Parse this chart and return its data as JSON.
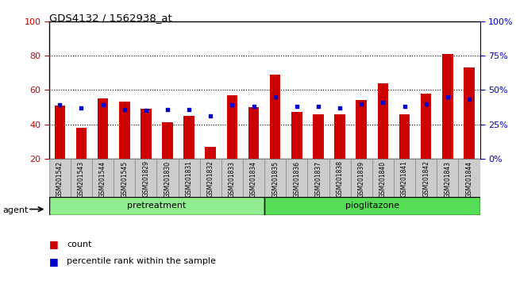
{
  "title": "GDS4132 / 1562938_at",
  "samples": [
    "GSM201542",
    "GSM201543",
    "GSM201544",
    "GSM201545",
    "GSM201829",
    "GSM201830",
    "GSM201831",
    "GSM201832",
    "GSM201833",
    "GSM201834",
    "GSM201835",
    "GSM201836",
    "GSM201837",
    "GSM201838",
    "GSM201839",
    "GSM201840",
    "GSM201841",
    "GSM201842",
    "GSM201843",
    "GSM201844"
  ],
  "counts": [
    51,
    38,
    55,
    53,
    49,
    41,
    45,
    27,
    57,
    50,
    69,
    47,
    46,
    46,
    54,
    64,
    46,
    58,
    81,
    73
  ],
  "percentile_ranks": [
    39,
    37,
    39,
    36,
    35,
    36,
    36,
    31,
    39,
    38,
    45,
    38,
    38,
    37,
    40,
    41,
    38,
    40,
    45,
    43
  ],
  "group_labels": [
    "pretreatment",
    "pioglitazone"
  ],
  "pretreatment_count": 10,
  "pioglitazone_count": 10,
  "group_color_pre": "#90ee90",
  "group_color_pio": "#55dd55",
  "bar_color": "#cc0000",
  "dot_color": "#0000cc",
  "ylim_left": [
    20,
    100
  ],
  "ylim_right": [
    0,
    100
  ],
  "yticks_left": [
    20,
    40,
    60,
    80,
    100
  ],
  "yticks_right": [
    0,
    25,
    50,
    75,
    100
  ],
  "ytick_labels_right": [
    "0%",
    "25%",
    "50%",
    "75%",
    "100%"
  ],
  "grid_values": [
    40,
    60,
    80
  ],
  "bg_color": "#ffffff",
  "bar_width": 0.5,
  "label_bg_color": "#cccccc",
  "legend_count": "count",
  "legend_pct": "percentile rank within the sample"
}
